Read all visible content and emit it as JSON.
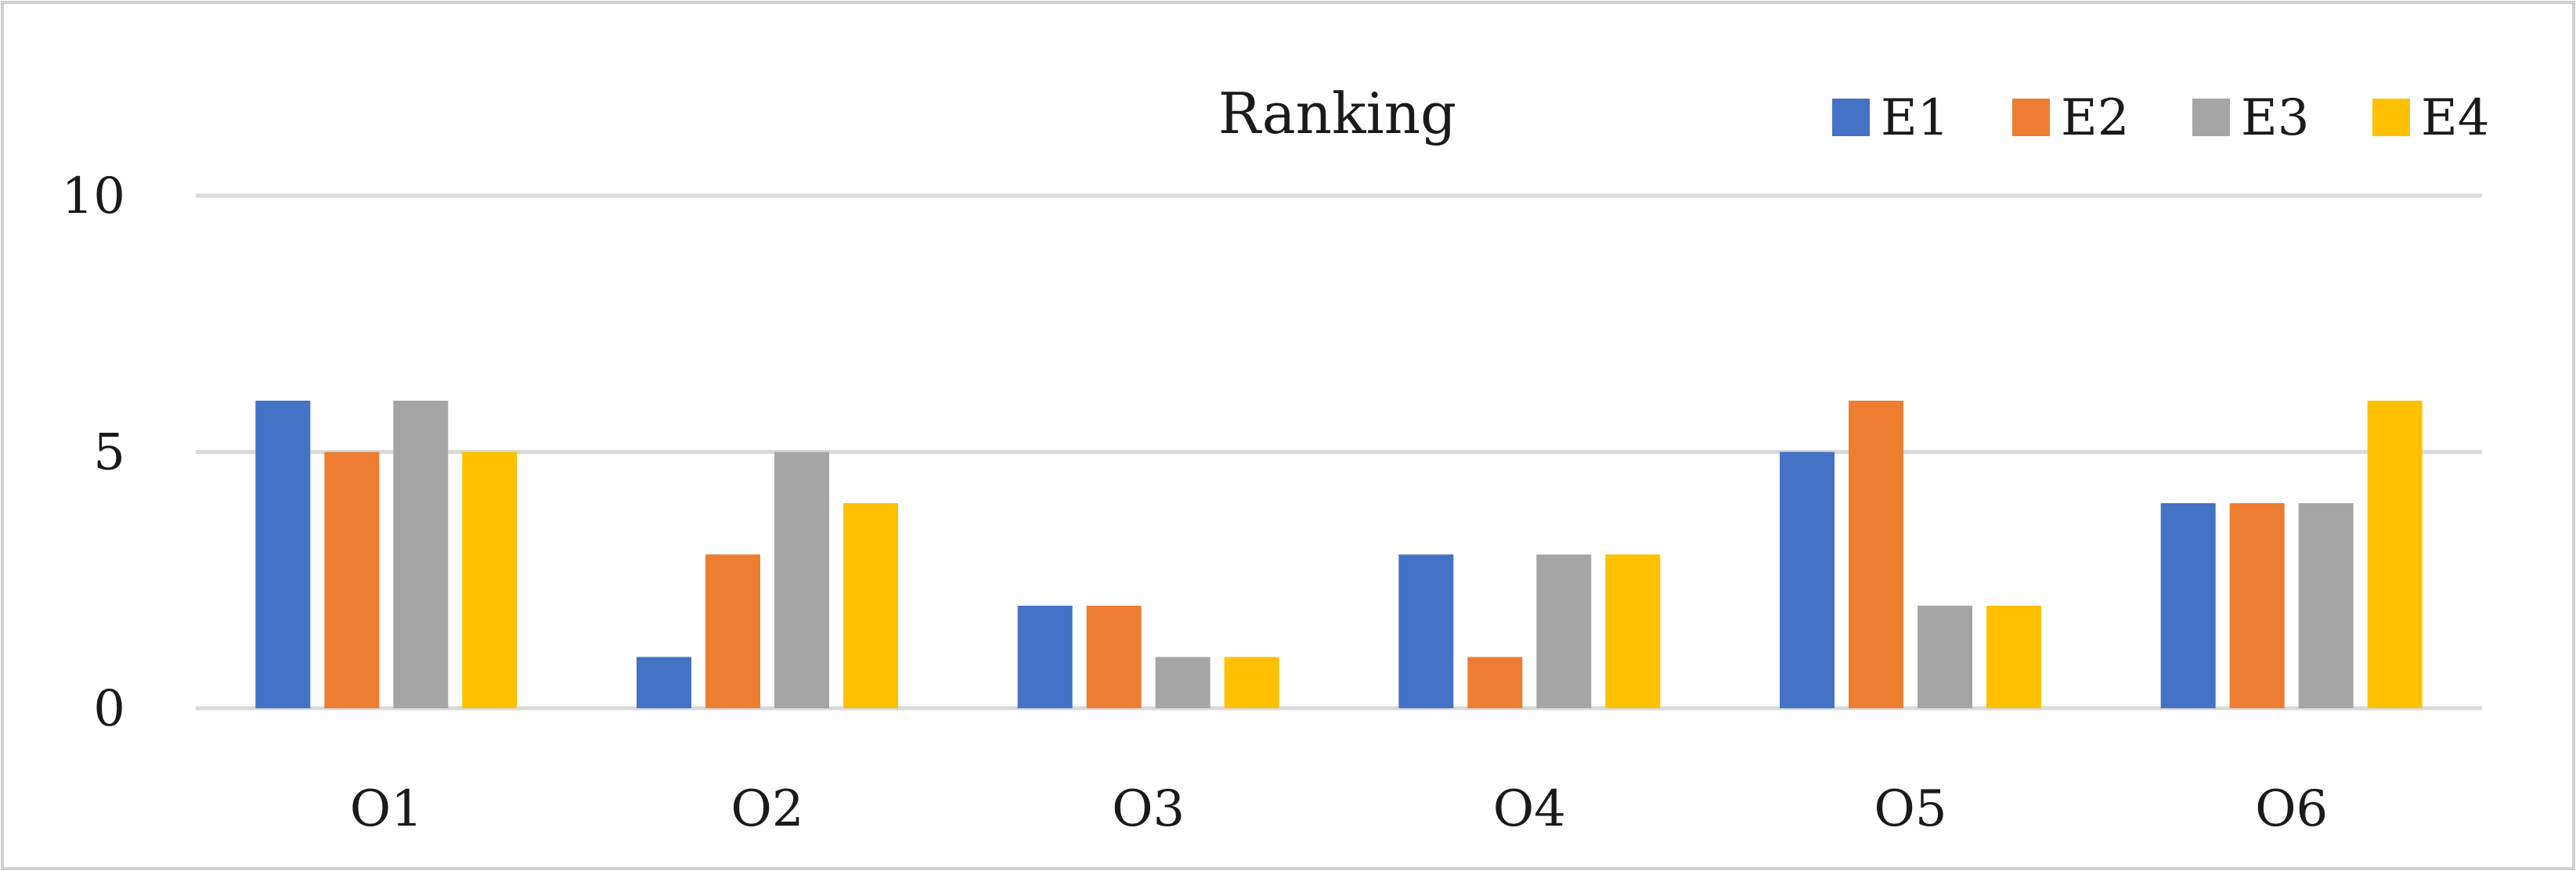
{
  "chart_data": {
    "type": "bar",
    "title": "Ranking",
    "categories": [
      "O1",
      "O2",
      "O3",
      "O4",
      "O5",
      "O6"
    ],
    "series": [
      {
        "name": "E1",
        "color": "#4472C4",
        "values": [
          6,
          1,
          2,
          3,
          5,
          4
        ]
      },
      {
        "name": "E2",
        "color": "#ED7D31",
        "values": [
          5,
          3,
          2,
          1,
          6,
          4
        ]
      },
      {
        "name": "E3",
        "color": "#A5A5A5",
        "values": [
          6,
          5,
          1,
          3,
          2,
          4
        ]
      },
      {
        "name": "E4",
        "color": "#FFC000",
        "values": [
          5,
          4,
          1,
          3,
          2,
          6
        ]
      }
    ],
    "ylim": [
      0,
      10
    ],
    "yticks": [
      0,
      5,
      10
    ],
    "ytick_labels": [
      "0",
      "5",
      "10"
    ],
    "grid": true,
    "legend_position": "top-right",
    "xlabel": "",
    "ylabel": ""
  }
}
